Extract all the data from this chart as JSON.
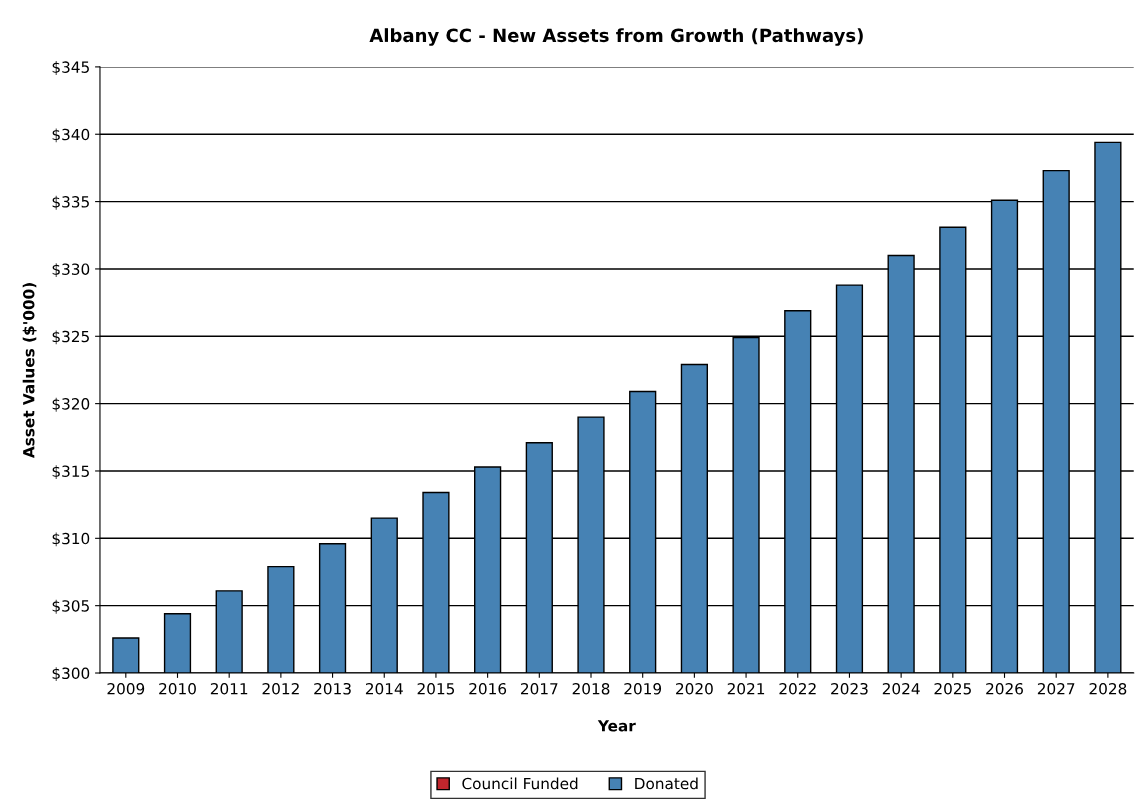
{
  "chart_data": {
    "type": "bar",
    "title": "Albany CC - New Assets from Growth (Pathways)",
    "xlabel": "Year",
    "ylabel": "Asset Values ($'000)",
    "categories": [
      "2009",
      "2010",
      "2011",
      "2012",
      "2013",
      "2014",
      "2015",
      "2016",
      "2017",
      "2018",
      "2019",
      "2020",
      "2021",
      "2022",
      "2023",
      "2024",
      "2025",
      "2026",
      "2027",
      "2028"
    ],
    "stacked": true,
    "series": [
      {
        "name": "Council Funded",
        "color": "#c0262d",
        "values": [
          null,
          null,
          null,
          null,
          null,
          null,
          null,
          null,
          null,
          null,
          null,
          null,
          null,
          null,
          null,
          null,
          null,
          null,
          null,
          null
        ]
      },
      {
        "name": "Donated",
        "color": "#4682b4",
        "values": [
          302.6,
          304.4,
          306.1,
          307.9,
          309.6,
          311.5,
          313.4,
          315.3,
          317.1,
          319.0,
          320.9,
          322.9,
          324.9,
          326.9,
          328.8,
          331.0,
          333.1,
          335.1,
          337.3,
          339.4
        ]
      }
    ],
    "ylim": [
      300,
      345
    ],
    "yticks": [
      {
        "value": 300,
        "label": "$300"
      },
      {
        "value": 305,
        "label": "$305"
      },
      {
        "value": 310,
        "label": "$310"
      },
      {
        "value": 315,
        "label": "$315"
      },
      {
        "value": 320,
        "label": "$320"
      },
      {
        "value": 325,
        "label": "$325"
      },
      {
        "value": 330,
        "label": "$330"
      },
      {
        "value": 335,
        "label": "$335"
      },
      {
        "value": 340,
        "label": "$340"
      },
      {
        "value": 345,
        "label": "$345"
      }
    ],
    "grid": "y",
    "legend": "bottom"
  }
}
